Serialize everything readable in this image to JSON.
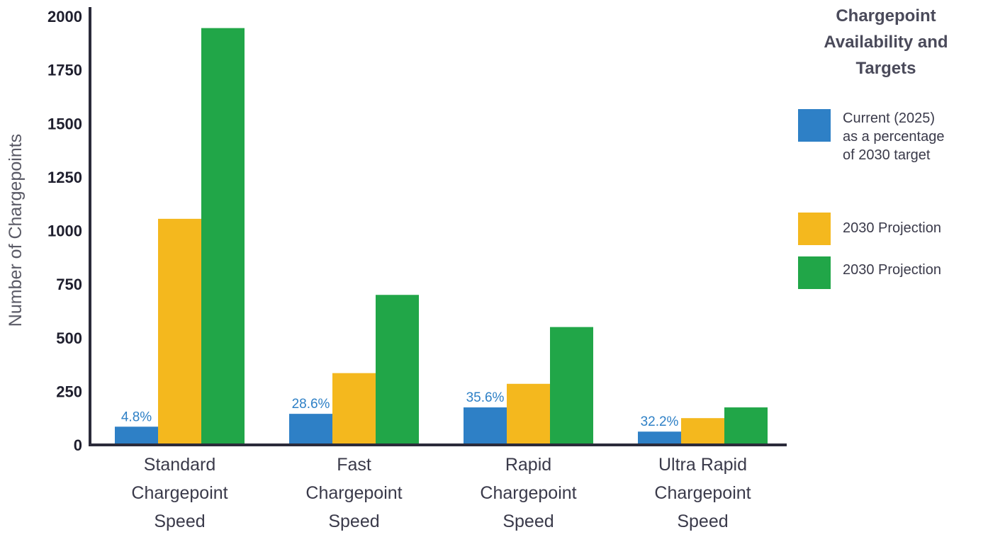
{
  "chart_data": {
    "type": "bar",
    "title": "Chargepoint Availability and Targets",
    "ylabel": "Number of Chargepoints",
    "xlabel": "",
    "ylim": [
      0,
      2000
    ],
    "yticks": [
      "0",
      "250",
      "500",
      "750",
      "1000",
      "1250",
      "1500",
      "1750",
      "2000"
    ],
    "categories": [
      "Standard Chargepoint Speed",
      "Fast Chargepoint Speed",
      "Rapid Chargepoint Speed",
      "Ultra Rapid Chargepoint Speed"
    ],
    "category_lines": [
      [
        "Standard",
        "Chargepoint",
        "Speed"
      ],
      [
        "Fast",
        "Chargepoint",
        "Speed"
      ],
      [
        "Rapid",
        "Chargepoint",
        "Speed"
      ],
      [
        "Ultra Rapid",
        "Chargepoint",
        "Speed"
      ]
    ],
    "series": [
      {
        "name": "Current (2025) as a percentage of 2030 target",
        "color": "#2e80c6",
        "values": [
          85,
          145,
          175,
          62
        ],
        "labels": [
          "4.8%",
          "28.6%",
          "35.6%",
          "32.2%"
        ]
      },
      {
        "name": "2030 Projection",
        "color": "#f4b81e",
        "values": [
          1055,
          335,
          285,
          125
        ]
      },
      {
        "name": "2030 Projection",
        "color": "#21a648",
        "values": [
          1945,
          700,
          550,
          175
        ]
      }
    ],
    "grid": false,
    "legend_position": "right"
  },
  "colors": {
    "axis": "#2b2b3a",
    "label_accent": "#2e80c6",
    "text": "#3a3a4a"
  }
}
